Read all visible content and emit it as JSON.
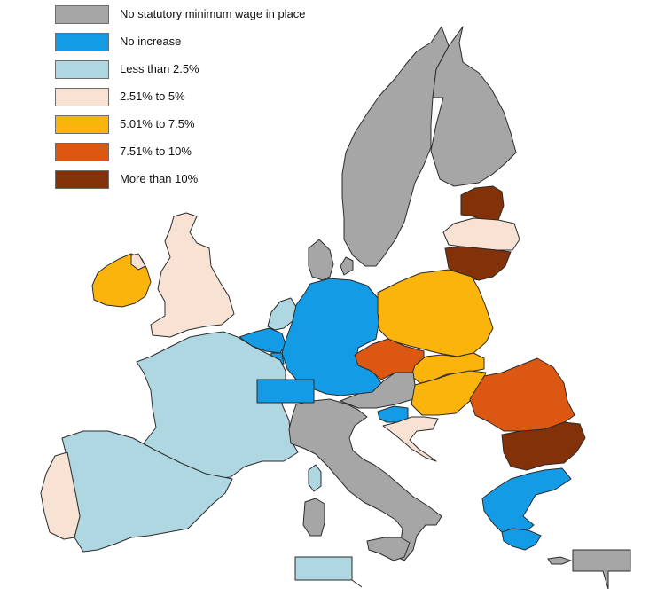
{
  "legend": {
    "items": [
      {
        "label": "No statutory minimum wage in place",
        "color": "#a6a6a6"
      },
      {
        "label": "No increase",
        "color": "#139be6"
      },
      {
        "label": "Less than 2.5%",
        "color": "#aed7e1"
      },
      {
        "label": "2.51% to 5%",
        "color": "#f7e2d4"
      },
      {
        "label": "5.01% to 7.5%",
        "color": "#fbb40c"
      },
      {
        "label": "7.51% to 10%",
        "color": "#dc5812"
      },
      {
        "label": "More than 10%",
        "color": "#833109"
      }
    ]
  },
  "map_regions": [
    {
      "name": "sweden",
      "category": 0
    },
    {
      "name": "finland",
      "category": 0
    },
    {
      "name": "denmark",
      "category": 0
    },
    {
      "name": "estonia",
      "category": 6
    },
    {
      "name": "latvia",
      "category": 3
    },
    {
      "name": "lithuania",
      "category": 6
    },
    {
      "name": "ireland",
      "category": 4
    },
    {
      "name": "united-kingdom",
      "category": 3
    },
    {
      "name": "netherlands",
      "category": 2
    },
    {
      "name": "belgium",
      "category": 1
    },
    {
      "name": "luxembourg",
      "category": 1
    },
    {
      "name": "germany",
      "category": 1
    },
    {
      "name": "poland",
      "category": 4
    },
    {
      "name": "czechia",
      "category": 5
    },
    {
      "name": "slovakia",
      "category": 4
    },
    {
      "name": "austria",
      "category": 0
    },
    {
      "name": "hungary",
      "category": 4
    },
    {
      "name": "romania",
      "category": 5
    },
    {
      "name": "bulgaria",
      "category": 6
    },
    {
      "name": "slovenia",
      "category": 1
    },
    {
      "name": "croatia",
      "category": 3
    },
    {
      "name": "france",
      "category": 2
    },
    {
      "name": "spain",
      "category": 2
    },
    {
      "name": "portugal",
      "category": 3
    },
    {
      "name": "italy",
      "category": 0
    },
    {
      "name": "sardinia",
      "category": 0
    },
    {
      "name": "sicily",
      "category": 0
    },
    {
      "name": "corsica",
      "category": 2
    },
    {
      "name": "greece",
      "category": 1
    },
    {
      "name": "crete",
      "category": 1
    },
    {
      "name": "malta",
      "category": 2
    },
    {
      "name": "cyprus",
      "category": 0
    }
  ]
}
